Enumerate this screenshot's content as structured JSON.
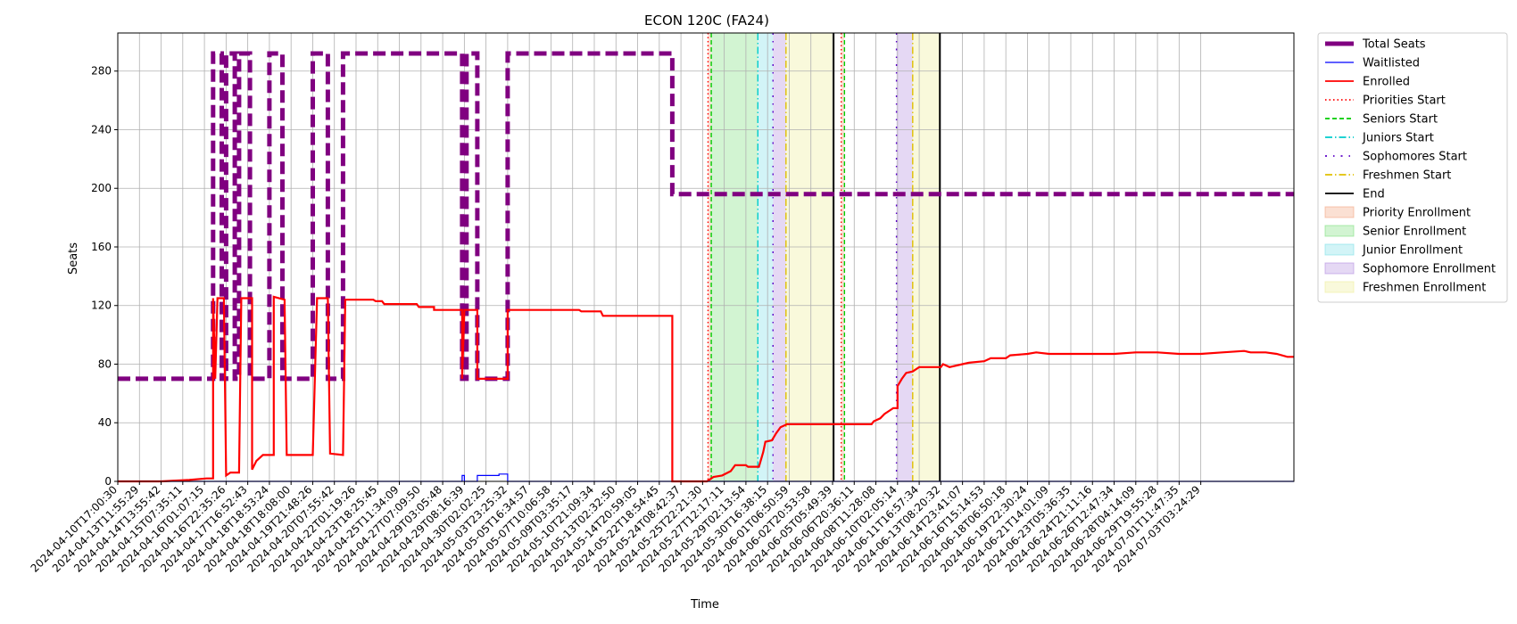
{
  "chart_data": {
    "type": "line",
    "title": "ECON 120C (FA24)",
    "xlabel": "Time",
    "ylabel": "Seats",
    "ylim": [
      0,
      306
    ],
    "yticks": [
      0,
      40,
      80,
      120,
      160,
      200,
      240,
      280
    ],
    "grid": true,
    "legend_position": "outside-right",
    "x_tick_labels": [
      "2024-04-10T17:00:30",
      "2024-04-13T11:55:29",
      "2024-04-14T13:55:42",
      "2024-04-15T07:35:11",
      "2024-04-16T01:07:15",
      "2024-04-16T22:35:26",
      "2024-04-17T16:52:43",
      "2024-04-18T18:53:24",
      "2024-04-18T18:08:00",
      "2024-04-19T21:48:26",
      "2024-04-20T07:55:42",
      "2024-04-22T01:19:26",
      "2024-04-23T18:25:45",
      "2024-04-25T11:34:09",
      "2024-04-27T07:09:50",
      "2024-04-29T03:05:48",
      "2024-04-29T08:16:39",
      "2024-04-30T02:02:25",
      "2024-05-03T23:25:32",
      "2024-05-05T16:34:57",
      "2024-05-07T10:06:58",
      "2024-05-09T03:35:17",
      "2024-05-10T21:09:34",
      "2024-05-13T02:32:50",
      "2024-05-14T20:59:05",
      "2024-05-22T18:54:45",
      "2024-05-24T08:42:37",
      "2024-05-25T22:21:30",
      "2024-05-27T12:17:11",
      "2024-05-29T02:13:54",
      "2024-05-30T16:38:15",
      "2024-06-01T06:50:59",
      "2024-06-02T20:53:58",
      "2024-06-05T05:49:39",
      "2024-06-06T20:36:11",
      "2024-06-08T11:28:08",
      "2024-06-10T02:05:14",
      "2024-06-11T16:57:34",
      "2024-06-13T08:20:32",
      "2024-06-14T23:41:07",
      "2024-06-16T15:14:53",
      "2024-06-18T06:50:18",
      "2024-06-19T22:30:24",
      "2024-06-21T14:01:09",
      "2024-06-23T05:36:35",
      "2024-06-24T21:11:16",
      "2024-06-26T12:47:34",
      "2024-06-28T04:14:09",
      "2024-06-29T19:55:28",
      "2024-07-01T11:47:35",
      "2024-07-03T03:24:29"
    ],
    "x_range": [
      0,
      54.3
    ],
    "series": [
      {
        "name": "Total Seats",
        "color": "#800080",
        "style": "dashed-thick",
        "points": [
          [
            0,
            70
          ],
          [
            4.4,
            70
          ],
          [
            4.4,
            292
          ],
          [
            4.8,
            292
          ],
          [
            4.8,
            70
          ],
          [
            5.0,
            70
          ],
          [
            5.0,
            292
          ],
          [
            5.4,
            292
          ],
          [
            5.4,
            70
          ],
          [
            5.6,
            70
          ],
          [
            5.6,
            292
          ],
          [
            6.1,
            292
          ],
          [
            6.1,
            70
          ],
          [
            7.0,
            70
          ],
          [
            7.0,
            292
          ],
          [
            7.6,
            292
          ],
          [
            7.6,
            70
          ],
          [
            9.0,
            70
          ],
          [
            9.0,
            292
          ],
          [
            9.7,
            292
          ],
          [
            9.7,
            70
          ],
          [
            10.4,
            70
          ],
          [
            10.4,
            292
          ],
          [
            15.9,
            292
          ],
          [
            15.9,
            70
          ],
          [
            16.1,
            70
          ],
          [
            16.1,
            292
          ],
          [
            16.6,
            292
          ],
          [
            16.6,
            70
          ],
          [
            18.0,
            70
          ],
          [
            18.0,
            292
          ],
          [
            25.6,
            292
          ],
          [
            25.6,
            196
          ],
          [
            54.3,
            196
          ]
        ]
      },
      {
        "name": "Waitlisted",
        "color": "#0000ff",
        "style": "solid-thin",
        "points": [
          [
            0,
            0
          ],
          [
            15.9,
            0
          ],
          [
            15.9,
            4
          ],
          [
            16.0,
            4
          ],
          [
            16.0,
            0
          ],
          [
            16.6,
            0
          ],
          [
            16.6,
            4
          ],
          [
            17.6,
            4
          ],
          [
            17.6,
            5
          ],
          [
            18.0,
            5
          ],
          [
            18.0,
            0
          ],
          [
            54.3,
            0
          ]
        ]
      },
      {
        "name": "Enrolled",
        "color": "#ff0000",
        "style": "solid",
        "points": [
          [
            0,
            0
          ],
          [
            2.0,
            0
          ],
          [
            3.3,
            1
          ],
          [
            4.1,
            2
          ],
          [
            4.4,
            2
          ],
          [
            4.4,
            125
          ],
          [
            4.5,
            70
          ],
          [
            4.6,
            125
          ],
          [
            4.9,
            125
          ],
          [
            5.0,
            4
          ],
          [
            5.2,
            6
          ],
          [
            5.6,
            6
          ],
          [
            5.7,
            125
          ],
          [
            6.2,
            125
          ],
          [
            6.2,
            8
          ],
          [
            6.4,
            14
          ],
          [
            6.7,
            18
          ],
          [
            7.2,
            18
          ],
          [
            7.2,
            126
          ],
          [
            7.7,
            124
          ],
          [
            7.8,
            18
          ],
          [
            9.0,
            18
          ],
          [
            9.2,
            125
          ],
          [
            9.7,
            125
          ],
          [
            9.8,
            19
          ],
          [
            10.4,
            18
          ],
          [
            10.5,
            124
          ],
          [
            11.8,
            124
          ],
          [
            11.9,
            123
          ],
          [
            12.2,
            123
          ],
          [
            12.3,
            121
          ],
          [
            13.8,
            121
          ],
          [
            13.9,
            119
          ],
          [
            14.6,
            119
          ],
          [
            14.6,
            117
          ],
          [
            15.9,
            117
          ],
          [
            15.9,
            70
          ],
          [
            16.0,
            117
          ],
          [
            16.6,
            117
          ],
          [
            16.6,
            70
          ],
          [
            17.9,
            70
          ],
          [
            18.0,
            70
          ],
          [
            18.0,
            117
          ],
          [
            21.3,
            117
          ],
          [
            21.4,
            116
          ],
          [
            22.3,
            116
          ],
          [
            22.4,
            113
          ],
          [
            25.6,
            113
          ],
          [
            25.6,
            0
          ],
          [
            27.2,
            0
          ],
          [
            27.5,
            3
          ],
          [
            27.9,
            4
          ],
          [
            28.3,
            7
          ],
          [
            28.5,
            11
          ],
          [
            29.0,
            11
          ],
          [
            29.1,
            10
          ],
          [
            29.6,
            10
          ],
          [
            29.8,
            20
          ],
          [
            29.9,
            27
          ],
          [
            30.2,
            28
          ],
          [
            30.4,
            33
          ],
          [
            30.6,
            37
          ],
          [
            30.9,
            39
          ],
          [
            34.8,
            39
          ],
          [
            34.9,
            41
          ],
          [
            35.2,
            43
          ],
          [
            35.4,
            46
          ],
          [
            35.6,
            48
          ],
          [
            35.8,
            50
          ],
          [
            36.0,
            50
          ],
          [
            36.0,
            65
          ],
          [
            36.2,
            70
          ],
          [
            36.4,
            74
          ],
          [
            36.7,
            75
          ],
          [
            37.0,
            78
          ],
          [
            38.0,
            78
          ],
          [
            38.1,
            80
          ],
          [
            38.4,
            78
          ],
          [
            39.0,
            80
          ],
          [
            39.3,
            81
          ],
          [
            40.0,
            82
          ],
          [
            40.3,
            84
          ],
          [
            41.0,
            84
          ],
          [
            41.2,
            86
          ],
          [
            42.0,
            87
          ],
          [
            42.4,
            88
          ],
          [
            43.0,
            87
          ],
          [
            44.0,
            87
          ],
          [
            45.0,
            87
          ],
          [
            46.0,
            87
          ],
          [
            47.0,
            88
          ],
          [
            48.0,
            88
          ],
          [
            49.0,
            87
          ],
          [
            50.0,
            87
          ],
          [
            51.0,
            88
          ],
          [
            52.0,
            89
          ],
          [
            52.3,
            88
          ],
          [
            53.0,
            88
          ],
          [
            53.5,
            87
          ],
          [
            54.0,
            85
          ],
          [
            54.3,
            85
          ]
        ]
      }
    ],
    "vlines": [
      {
        "name": "Priorities Start",
        "color": "#ff0000",
        "style": "dotted",
        "x": 27.25
      },
      {
        "name": "Seniors Start",
        "color": "#00cc00",
        "style": "dashed",
        "x": 27.4
      },
      {
        "name": "Juniors Start",
        "color": "#00cccc",
        "style": "dashdot",
        "x": 29.55
      },
      {
        "name": "Sophomores Start",
        "color": "#5b00c8",
        "style": "dashdot2",
        "x": 30.25
      },
      {
        "name": "Freshmen Start",
        "color": "#e0c000",
        "style": "dashdot",
        "x": 30.85
      },
      {
        "name": "End",
        "color": "#000000",
        "style": "solid",
        "x": 33.05
      },
      {
        "name": "Priorities Start",
        "color": "#ff0000",
        "style": "dotted",
        "x": 33.4
      },
      {
        "name": "Seniors Start",
        "color": "#00cc00",
        "style": "dashed",
        "x": 33.55
      },
      {
        "name": "Sophomores Start",
        "color": "#5b00c8",
        "style": "dashdot2",
        "x": 35.95
      },
      {
        "name": "Freshmen Start",
        "color": "#e0c000",
        "style": "dashdot",
        "x": 36.7
      },
      {
        "name": "End",
        "color": "#000000",
        "style": "solid",
        "x": 37.95
      }
    ],
    "spans": [
      {
        "name": "Priority Enrollment",
        "color": "#f4a582",
        "from": 27.25,
        "to": 27.4
      },
      {
        "name": "Senior Enrollment",
        "color": "#7ee07e",
        "from": 27.4,
        "to": 29.55
      },
      {
        "name": "Junior Enrollment",
        "color": "#7ee0e8",
        "from": 29.55,
        "to": 30.25
      },
      {
        "name": "Sophomore Enrollment",
        "color": "#b48ee0",
        "from": 30.25,
        "to": 30.85
      },
      {
        "name": "Freshmen Enrollment",
        "color": "#eeee99",
        "from": 30.85,
        "to": 33.05
      },
      {
        "name": "Priority Enrollment",
        "color": "#f4a582",
        "from": 33.4,
        "to": 33.55
      },
      {
        "name": "Sophomore Enrollment",
        "color": "#b48ee0",
        "from": 35.95,
        "to": 36.7
      },
      {
        "name": "Freshmen Enrollment",
        "color": "#eeee99",
        "from": 36.7,
        "to": 37.95
      }
    ],
    "legend": [
      {
        "label": "Total Seats",
        "kind": "line",
        "color": "#800080",
        "style": "thick"
      },
      {
        "label": "Waitlisted",
        "kind": "line",
        "color": "#0000ff",
        "style": "thin"
      },
      {
        "label": "Enrolled",
        "kind": "line",
        "color": "#ff0000",
        "style": "solid"
      },
      {
        "label": "Priorities Start",
        "kind": "line",
        "color": "#ff0000",
        "style": "dotted"
      },
      {
        "label": "Seniors Start",
        "kind": "line",
        "color": "#00cc00",
        "style": "dashed"
      },
      {
        "label": "Juniors Start",
        "kind": "line",
        "color": "#00cccc",
        "style": "dashdot"
      },
      {
        "label": "Sophomores Start",
        "kind": "line",
        "color": "#5b00c8",
        "style": "dashdot2"
      },
      {
        "label": "Freshmen Start",
        "kind": "line",
        "color": "#e0c000",
        "style": "dashdot"
      },
      {
        "label": "End",
        "kind": "line",
        "color": "#000000",
        "style": "solid"
      },
      {
        "label": "Priority Enrollment",
        "kind": "patch",
        "color": "#f4a582"
      },
      {
        "label": "Senior Enrollment",
        "kind": "patch",
        "color": "#7ee07e"
      },
      {
        "label": "Junior Enrollment",
        "kind": "patch",
        "color": "#7ee0e8"
      },
      {
        "label": "Sophomore Enrollment",
        "kind": "patch",
        "color": "#b48ee0"
      },
      {
        "label": "Freshmen Enrollment",
        "kind": "patch",
        "color": "#eeee99"
      }
    ]
  }
}
